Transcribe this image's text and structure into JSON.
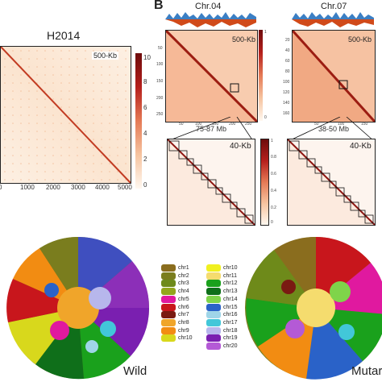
{
  "panel_a": {
    "title": "H2014",
    "resolution": "500-Kb",
    "colorbar_ticks": [
      "10",
      "8",
      "6",
      "4",
      "2",
      "0"
    ],
    "x_ticks": [
      "0",
      "1000",
      "2000",
      "3000",
      "4000",
      "5000"
    ]
  },
  "panel_b": {
    "letter": "B",
    "chr_left": "Chr.04",
    "chr_right": "Chr.07",
    "res_top": "500-Kb",
    "res_bottom": "40-Kb",
    "range_left": "75-87 Mb",
    "range_right": "38-50 Mb",
    "left_y_ticks": [
      "50",
      "100",
      "150",
      "200",
      "250"
    ],
    "left_x_ticks": [
      "50",
      "100",
      "150",
      "200",
      "250"
    ],
    "right_y_ticks": [
      "20",
      "40",
      "60",
      "80",
      "100",
      "120",
      "140",
      "160"
    ],
    "right_x_ticks": [
      "50",
      "100",
      "150"
    ],
    "colorbar_ticks_top": [
      "1",
      "0"
    ],
    "colorbar_ticks_bottom": [
      "1",
      "0.8",
      "0.6",
      "0.4",
      "0.2",
      "0"
    ]
  },
  "panel_c": {
    "label_left": "Wild",
    "label_right": "Mutar",
    "legend": [
      {
        "name": "chr1",
        "color": "#8a6d1e"
      },
      {
        "name": "chr2",
        "color": "#7a7d1e"
      },
      {
        "name": "chr3",
        "color": "#6e8a1a"
      },
      {
        "name": "chr4",
        "color": "#93a61c"
      },
      {
        "name": "chr5",
        "color": "#e0199f"
      },
      {
        "name": "chr6",
        "color": "#c8161c"
      },
      {
        "name": "chr7",
        "color": "#7a1a12"
      },
      {
        "name": "chr8",
        "color": "#f0a52a"
      },
      {
        "name": "chr9",
        "color": "#f28c12"
      },
      {
        "name": "chr10",
        "color": "#d8d81c"
      },
      {
        "name": "chr10",
        "color": "#f0f020"
      },
      {
        "name": "chr11",
        "color": "#f5dc6e"
      },
      {
        "name": "chr12",
        "color": "#1aa11c"
      },
      {
        "name": "chr13",
        "color": "#0f6f1a"
      },
      {
        "name": "chr14",
        "color": "#7fd44a"
      },
      {
        "name": "chr15",
        "color": "#2a62c8"
      },
      {
        "name": "chr16",
        "color": "#9fd5e8"
      },
      {
        "name": "chr17",
        "color": "#42c7d9"
      },
      {
        "name": "chr18",
        "color": "#b7b7ec"
      },
      {
        "name": "chr19",
        "color": "#7a1fb0"
      },
      {
        "name": "chr20",
        "color": "#b45ad6"
      }
    ]
  }
}
